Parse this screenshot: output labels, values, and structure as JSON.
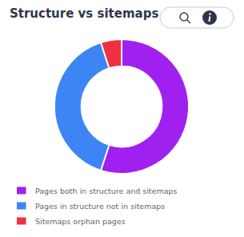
{
  "chart_data": {
    "type": "donut",
    "title": "Structure vs sitemaps",
    "categories": [
      "Pages both in structure and sitemaps",
      "Pages in structure not in sitemaps",
      "Sitemaps orphan pages"
    ],
    "values": [
      55,
      40,
      5
    ],
    "colors": [
      "#a020f0",
      "#3d85f5",
      "#f03040"
    ],
    "legend": "bottom"
  }
}
